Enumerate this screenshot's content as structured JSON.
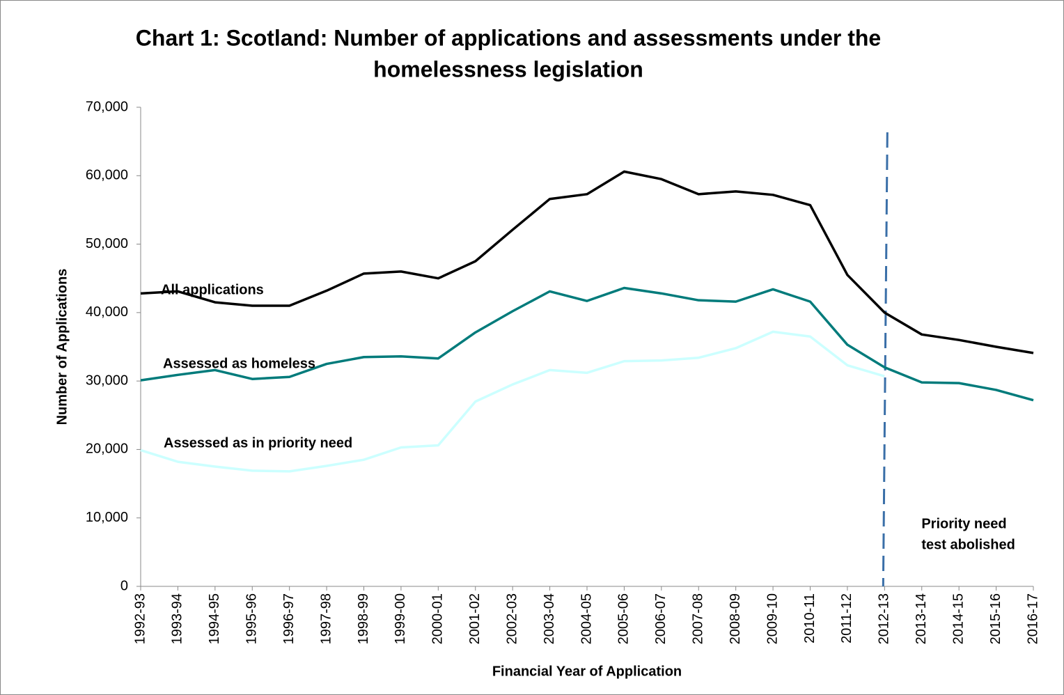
{
  "chart_data": {
    "type": "line",
    "title": [
      "Chart 1:   Scotland:  Number of applications and assessments under the",
      "homelessness legislation"
    ],
    "x_label": "Financial  Year of Application",
    "y_label": "Number of Applications",
    "categories": [
      "1992-93",
      "1993-94",
      "1994-95",
      "1995-96",
      "1996-97",
      "1997-98",
      "1998-99",
      "1999-00",
      "2000-01",
      "2001-02",
      "2002-03",
      "2003-04",
      "2004-05",
      "2005-06",
      "2006-07",
      "2007-08",
      "2008-09",
      "2009-10",
      "2010-11",
      "2011-12",
      "2012-13",
      "2013-14",
      "2014-15",
      "2015-16",
      "2016-17"
    ],
    "series": [
      {
        "name": "All applications",
        "color": "#000000",
        "values": [
          42800,
          43100,
          41500,
          41000,
          41000,
          43200,
          45700,
          46000,
          45000,
          47500,
          52100,
          56600,
          57300,
          60600,
          59500,
          57300,
          57700,
          57200,
          55700,
          45500,
          40000,
          36800,
          36000,
          35000,
          34100
        ]
      },
      {
        "name": "Assessed as homeless",
        "color": "#007b7b",
        "values": [
          30100,
          30900,
          31600,
          30300,
          30600,
          32500,
          33500,
          33600,
          33300,
          37100,
          40200,
          43100,
          41700,
          43600,
          42800,
          41800,
          41600,
          43400,
          41600,
          35300,
          32000,
          29800,
          29700,
          28700,
          27200
        ]
      },
      {
        "name": "Assessed as in priority need",
        "color": "#ccffff",
        "values": [
          19900,
          18200,
          17500,
          16900,
          16800,
          17600,
          18500,
          20300,
          20600,
          27000,
          29500,
          31600,
          31200,
          32900,
          33000,
          33400,
          34800,
          37200,
          36500,
          32300,
          30700,
          null,
          null,
          null,
          null
        ]
      }
    ],
    "reference_line": {
      "category": "2012-13",
      "color": "#3a6fa8",
      "label": [
        "Priority need",
        "test abolished"
      ]
    },
    "ylim": [
      0,
      70000
    ],
    "yticks": [
      0,
      {
        "value": 10000,
        "label": "10,000"
      },
      {
        "value": 20000,
        "label": "20,000"
      },
      {
        "value": 30000,
        "label": "30,000"
      },
      {
        "value": 40000,
        "label": "40,000"
      },
      {
        "value": 50000,
        "label": "50,000"
      },
      {
        "value": 60000,
        "label": "60,000"
      },
      {
        "value": 70000,
        "label": "70,000"
      }
    ],
    "grid": false
  }
}
